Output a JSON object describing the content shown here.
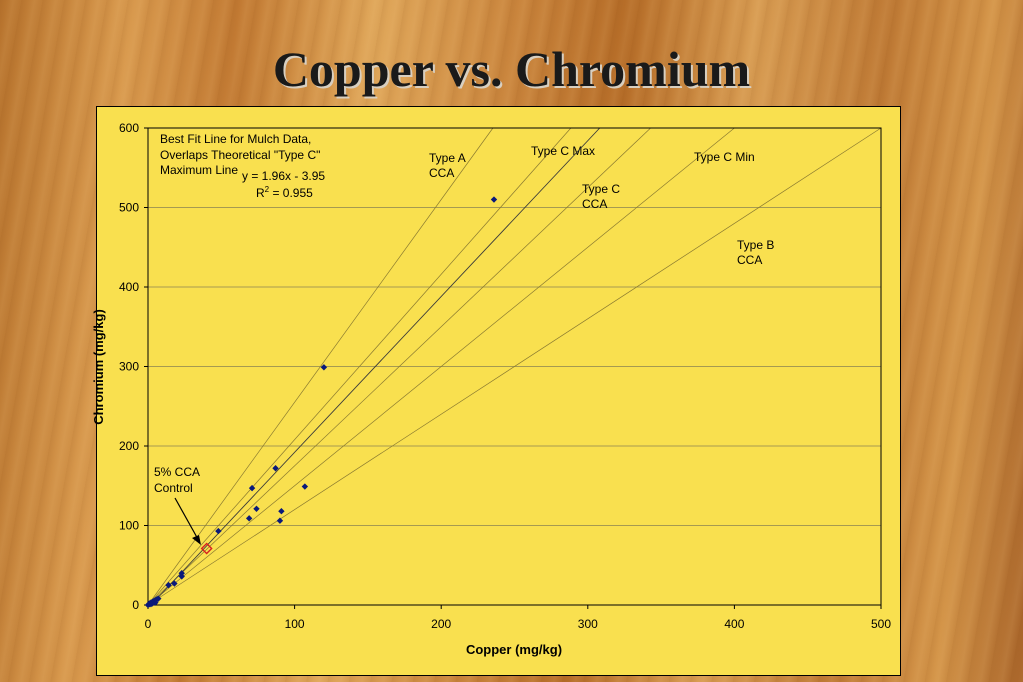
{
  "slide": {
    "title": "Copper vs. Chromium"
  },
  "chart_data": {
    "type": "scatter",
    "xlabel": "Copper (mg/kg)",
    "ylabel": "Chromium (mg/kg)",
    "xlim": [
      0,
      500
    ],
    "ylim": [
      0,
      600
    ],
    "xticks": [
      "0",
      "100",
      "200",
      "300",
      "400",
      "500"
    ],
    "yticks": [
      "0",
      "100",
      "200",
      "300",
      "400",
      "500",
      "600"
    ],
    "grid": "horizontal",
    "series": [
      {
        "points": [
          [
            0,
            0
          ],
          [
            1,
            1
          ],
          [
            1,
            2
          ],
          [
            2,
            1
          ],
          [
            2,
            3
          ],
          [
            3,
            2
          ],
          [
            3,
            4
          ],
          [
            4,
            5
          ],
          [
            5,
            3
          ],
          [
            5,
            6
          ],
          [
            6,
            7
          ],
          [
            7,
            8
          ],
          [
            14,
            25
          ],
          [
            18,
            27
          ],
          [
            23,
            36
          ],
          [
            23,
            40
          ],
          [
            48,
            93
          ],
          [
            69,
            109
          ],
          [
            71,
            147
          ],
          [
            74,
            121
          ],
          [
            87,
            172
          ],
          [
            90,
            106
          ],
          [
            91,
            118
          ],
          [
            107,
            149
          ],
          [
            120,
            299
          ],
          [
            236,
            510
          ]
        ],
        "color": "#0a1a7a"
      }
    ],
    "control_point": {
      "x": 40,
      "y": 71,
      "label": "5% CCA\nControl",
      "color": "#d62020"
    },
    "reference_lines": [
      {
        "label": "Type A\nCCA",
        "slope": 2.55
      },
      {
        "label": "Type C Max",
        "slope": 2.08
      },
      {
        "label": "Type C\nCCA",
        "slope": 1.75
      },
      {
        "label": "Type C Min",
        "slope": 1.5
      },
      {
        "label": "Type B\nCCA",
        "slope": 1.2
      }
    ],
    "fit": {
      "description": "Best Fit Line for Mulch Data,\nOverlaps Theoretical \"Type C\"\nMaximum Line",
      "equation": "y = 1.96x - 3.95",
      "r2_prefix": "R",
      "r2_sup": "2",
      "r2_value": " = 0.955",
      "slope": 1.96,
      "intercept": -3.95
    }
  }
}
